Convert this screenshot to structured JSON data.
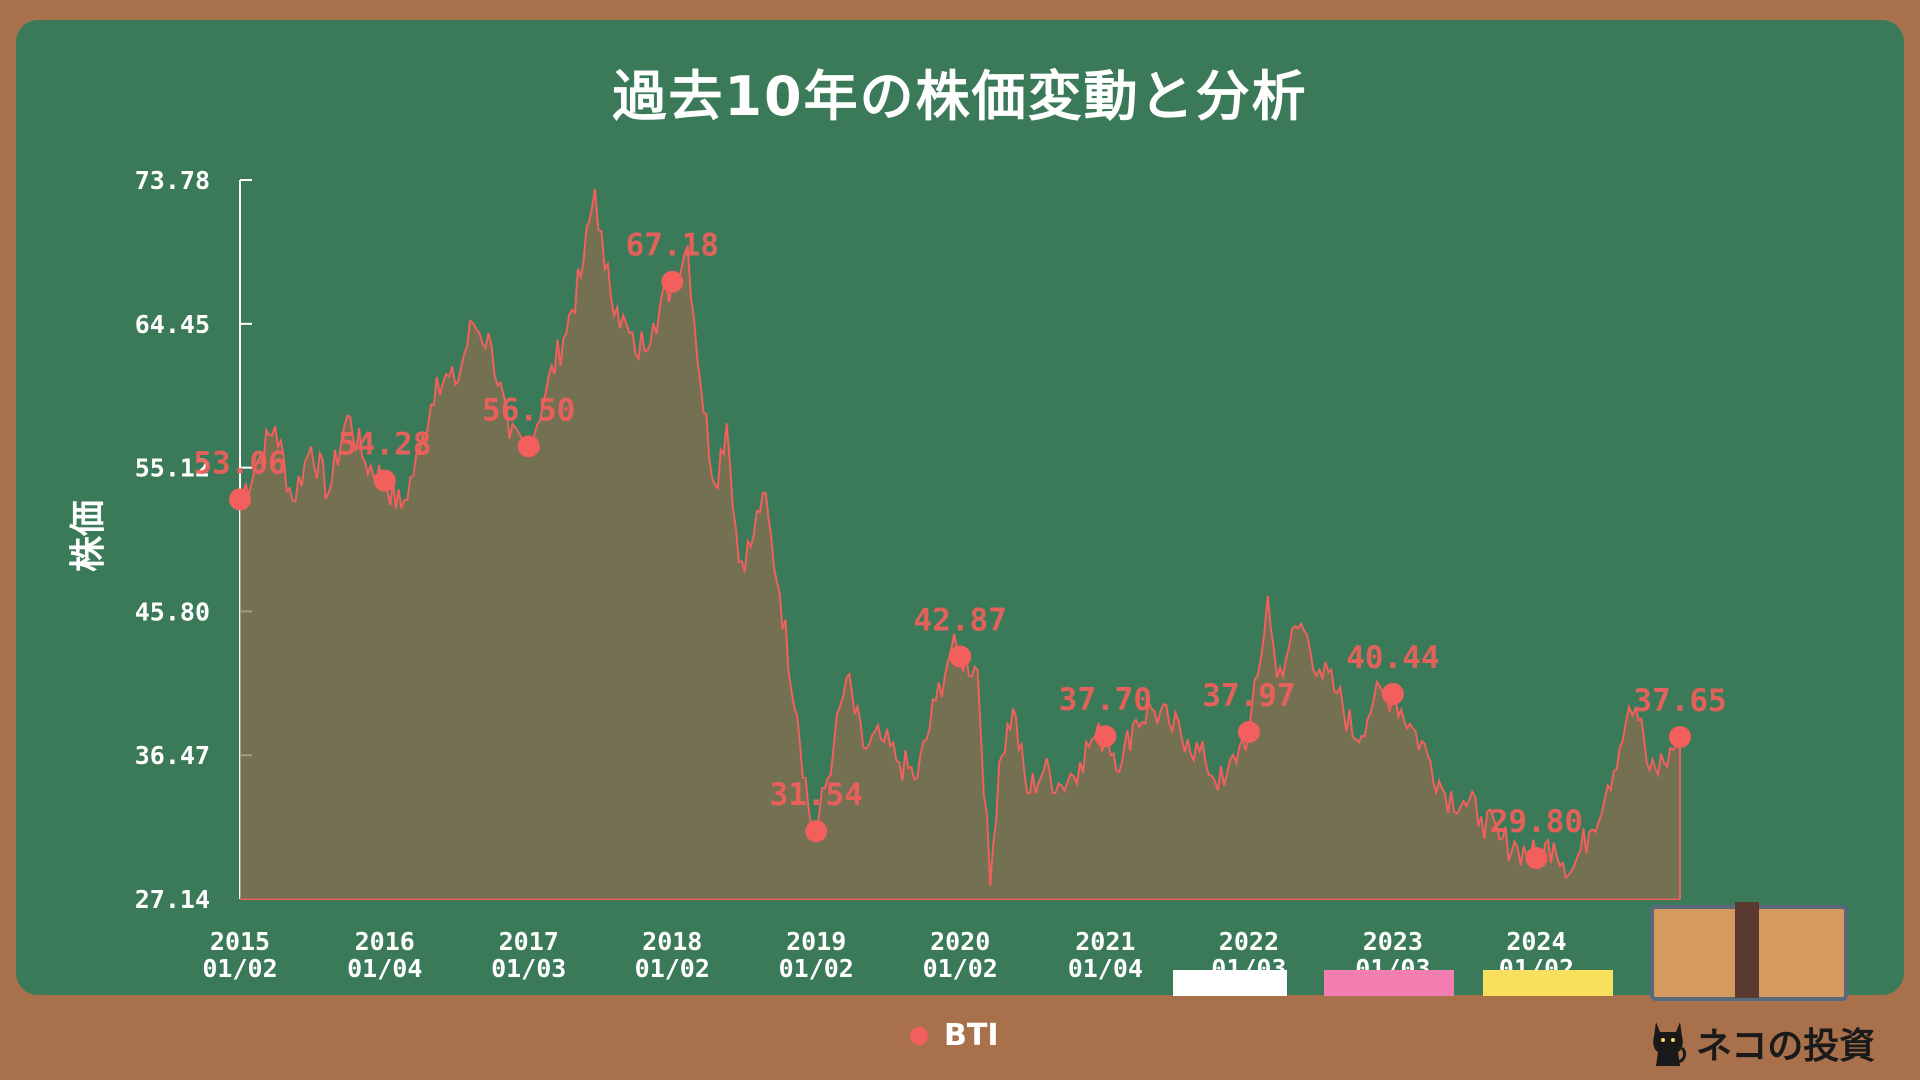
{
  "title": "過去10年の株価変動と分析",
  "legend": {
    "label": "BTI",
    "color": "#f25f5c",
    "icon": "dot-icon"
  },
  "brand": {
    "text": "ネコの投資",
    "icon": "cat-icon"
  },
  "colors": {
    "board": "#3a7a58",
    "frame": "#a9714b",
    "line": "#f25f5c",
    "area": "#7a7050"
  },
  "chart_data": {
    "type": "area",
    "title": "過去10年の株価変動と分析",
    "ylabel": "株価",
    "xlabel": "",
    "ylim": [
      27.14,
      73.78
    ],
    "yticks": [
      "73.78",
      "64.45",
      "55.12",
      "45.80",
      "36.47",
      "27.14"
    ],
    "xticks": [
      {
        "year": "2015",
        "date": "01/02"
      },
      {
        "year": "2016",
        "date": "01/04"
      },
      {
        "year": "2017",
        "date": "01/03"
      },
      {
        "year": "2018",
        "date": "01/02"
      },
      {
        "year": "2019",
        "date": "01/02"
      },
      {
        "year": "2020",
        "date": "01/02"
      },
      {
        "year": "2021",
        "date": "01/04"
      },
      {
        "year": "2022",
        "date": "01/03"
      },
      {
        "year": "2023",
        "date": "01/03"
      },
      {
        "year": "2024",
        "date": "01/02"
      }
    ],
    "annotations": [
      {
        "date": "2015-01-02",
        "value": 53.06,
        "label": "53.06"
      },
      {
        "date": "2016-01-04",
        "value": 54.28,
        "label": "54.28"
      },
      {
        "date": "2017-01-03",
        "value": 56.5,
        "label": "56.50"
      },
      {
        "date": "2018-01-02",
        "value": 67.18,
        "label": "67.18"
      },
      {
        "date": "2019-01-02",
        "value": 31.54,
        "label": "31.54"
      },
      {
        "date": "2020-01-02",
        "value": 42.87,
        "label": "42.87"
      },
      {
        "date": "2021-01-04",
        "value": 37.7,
        "label": "37.70"
      },
      {
        "date": "2022-01-03",
        "value": 37.97,
        "label": "37.97"
      },
      {
        "date": "2023-01-03",
        "value": 40.44,
        "label": "40.44"
      },
      {
        "date": "2024-01-02",
        "value": 29.8,
        "label": "29.80"
      },
      {
        "date": "2024-12-31",
        "value": 37.65,
        "label": "37.65"
      }
    ],
    "series": [
      {
        "values": [
          [
            "2015-01-02",
            53.06
          ],
          [
            "2015-02-15",
            55.5
          ],
          [
            "2015-04-01",
            57.8
          ],
          [
            "2015-05-15",
            53.0
          ],
          [
            "2015-07-01",
            56.5
          ],
          [
            "2015-08-15",
            53.5
          ],
          [
            "2015-10-01",
            58.5
          ],
          [
            "2015-11-15",
            55.5
          ],
          [
            "2016-01-04",
            54.28
          ],
          [
            "2016-02-15",
            52.5
          ],
          [
            "2016-04-01",
            56.0
          ],
          [
            "2016-05-15",
            61.0
          ],
          [
            "2016-07-01",
            60.5
          ],
          [
            "2016-08-15",
            64.5
          ],
          [
            "2016-10-01",
            63.0
          ],
          [
            "2016-11-15",
            57.0
          ],
          [
            "2017-01-03",
            56.5
          ],
          [
            "2017-02-15",
            60.0
          ],
          [
            "2017-04-01",
            63.5
          ],
          [
            "2017-05-15",
            67.5
          ],
          [
            "2017-06-20",
            73.2
          ],
          [
            "2017-07-15",
            68.0
          ],
          [
            "2017-08-15",
            65.5
          ],
          [
            "2017-10-01",
            62.5
          ],
          [
            "2017-11-15",
            64.5
          ],
          [
            "2018-01-02",
            67.18
          ],
          [
            "2018-02-10",
            69.5
          ],
          [
            "2018-03-15",
            60.5
          ],
          [
            "2018-04-20",
            54.0
          ],
          [
            "2018-05-20",
            58.0
          ],
          [
            "2018-06-20",
            49.0
          ],
          [
            "2018-07-20",
            50.0
          ],
          [
            "2018-08-20",
            53.5
          ],
          [
            "2018-10-01",
            47.0
          ],
          [
            "2018-11-15",
            39.0
          ],
          [
            "2018-12-20",
            31.9
          ],
          [
            "2019-01-02",
            31.54
          ],
          [
            "2019-02-15",
            37.0
          ],
          [
            "2019-03-20",
            41.5
          ],
          [
            "2019-05-01",
            37.0
          ],
          [
            "2019-06-15",
            37.5
          ],
          [
            "2019-08-01",
            36.0
          ],
          [
            "2019-09-15",
            35.0
          ],
          [
            "2019-11-01",
            40.0
          ],
          [
            "2019-12-10",
            43.3
          ],
          [
            "2020-01-02",
            42.87
          ],
          [
            "2020-02-15",
            42.0
          ],
          [
            "2020-03-18",
            28.0
          ],
          [
            "2020-04-10",
            36.0
          ],
          [
            "2020-05-15",
            39.5
          ],
          [
            "2020-06-20",
            34.0
          ],
          [
            "2020-08-01",
            35.5
          ],
          [
            "2020-09-15",
            34.5
          ],
          [
            "2020-11-01",
            36.0
          ],
          [
            "2020-12-01",
            37.5
          ],
          [
            "2021-01-04",
            37.7
          ],
          [
            "2021-02-15",
            36.0
          ],
          [
            "2021-03-15",
            38.5
          ],
          [
            "2021-05-01",
            39.5
          ],
          [
            "2021-06-15",
            38.5
          ],
          [
            "2021-08-01",
            37.5
          ],
          [
            "2021-09-15",
            36.0
          ],
          [
            "2021-11-01",
            34.5
          ],
          [
            "2021-12-10",
            37.0
          ],
          [
            "2022-01-03",
            37.97
          ],
          [
            "2022-02-01",
            42.5
          ],
          [
            "2022-02-20",
            46.8
          ],
          [
            "2022-03-15",
            41.5
          ],
          [
            "2022-04-15",
            43.5
          ],
          [
            "2022-05-15",
            45.0
          ],
          [
            "2022-07-01",
            42.0
          ],
          [
            "2022-08-15",
            40.5
          ],
          [
            "2022-10-01",
            37.5
          ],
          [
            "2022-11-15",
            40.0
          ],
          [
            "2023-01-03",
            40.44
          ],
          [
            "2023-02-15",
            38.5
          ],
          [
            "2023-04-01",
            36.5
          ],
          [
            "2023-05-15",
            34.0
          ],
          [
            "2023-07-01",
            33.5
          ],
          [
            "2023-08-15",
            32.5
          ],
          [
            "2023-10-01",
            31.0
          ],
          [
            "2023-11-15",
            30.5
          ],
          [
            "2024-01-02",
            29.8
          ],
          [
            "2024-02-15",
            30.8
          ],
          [
            "2024-04-01",
            29.0
          ],
          [
            "2024-05-15",
            31.5
          ],
          [
            "2024-07-01",
            34.5
          ],
          [
            "2024-08-15",
            38.5
          ],
          [
            "2024-09-10",
            39.5
          ],
          [
            "2024-10-15",
            35.5
          ],
          [
            "2024-11-20",
            36.0
          ],
          [
            "2024-12-31",
            37.65
          ]
        ]
      }
    ]
  }
}
